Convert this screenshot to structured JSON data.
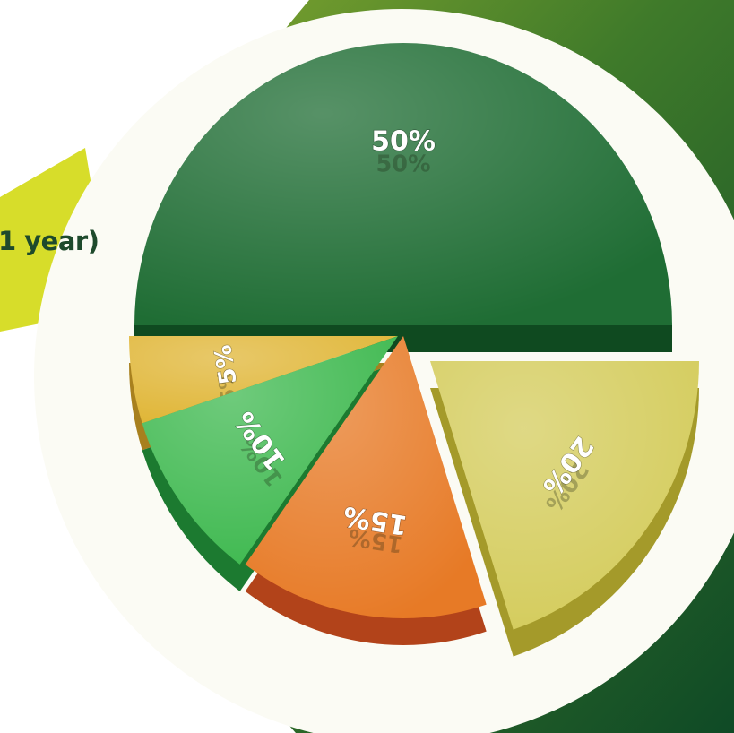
{
  "title_fragment": "1 year)",
  "colors": {
    "background_green_light": "#86a72c",
    "background_green_dark": "#0f4a26",
    "accent_yellow": "#d7dd2a",
    "circle": "#fbfbf4",
    "title_text": "#1e4a2c"
  },
  "chart_data": {
    "type": "pie",
    "style": "3d-exploded",
    "title": "",
    "legend": "none",
    "slices": [
      {
        "label": "50%",
        "value": 50,
        "color": "#1f6d34",
        "side_color": "#0f4a20"
      },
      {
        "label": "20%",
        "value": 20,
        "color": "#d4cc5c",
        "side_color": "#a49a2a"
      },
      {
        "label": "15%",
        "value": 15,
        "color": "#e77a26",
        "side_color": "#b2431a"
      },
      {
        "label": "10%",
        "value": 10,
        "color": "#3fb950",
        "side_color": "#1c7a30"
      },
      {
        "label": "5%",
        "value": 5,
        "color": "#e0b637",
        "side_color": "#a8801e"
      }
    ]
  }
}
